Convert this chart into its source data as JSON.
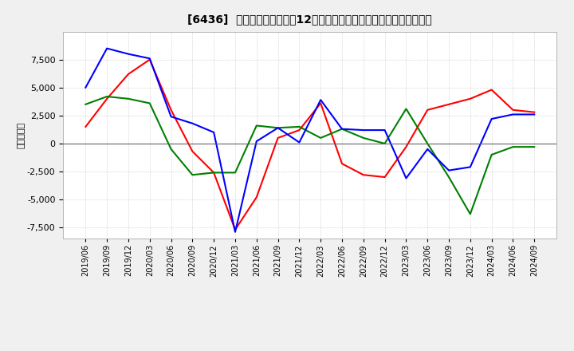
{
  "title": "[6436]  キャッシュフローの12か月移動合計の対前年同期増減額の推移",
  "ylabel": "（百万円）",
  "dates": [
    "2019/06",
    "2019/09",
    "2019/12",
    "2020/03",
    "2020/06",
    "2020/09",
    "2020/12",
    "2021/03",
    "2021/06",
    "2021/09",
    "2021/12",
    "2022/03",
    "2022/06",
    "2022/09",
    "2022/12",
    "2023/03",
    "2023/06",
    "2023/09",
    "2023/12",
    "2024/03",
    "2024/06",
    "2024/09"
  ],
  "eigyo_cf": [
    1500,
    4000,
    6200,
    7500,
    3000,
    -700,
    -2600,
    -7700,
    -4800,
    500,
    1200,
    3600,
    -1800,
    -2800,
    -3000,
    -300,
    3000,
    3500,
    4000,
    4800,
    3000,
    2800
  ],
  "toshi_cf": [
    3500,
    4200,
    4000,
    3600,
    -500,
    -2800,
    -2600,
    -2600,
    1600,
    1400,
    1500,
    500,
    1300,
    500,
    0,
    3100,
    0,
    -3000,
    -6300,
    -1000,
    -300,
    -300
  ],
  "free_cf": [
    5000,
    8500,
    8000,
    7600,
    2400,
    1800,
    1000,
    -7900,
    200,
    1400,
    100,
    3900,
    1300,
    1200,
    1200,
    -3100,
    -500,
    -2400,
    -2100,
    2200,
    2600,
    2600
  ],
  "eigyo_color": "#ff0000",
  "toshi_color": "#008000",
  "free_color": "#0000ff",
  "ylim": [
    -8500,
    10000
  ],
  "yticks": [
    -7500,
    -5000,
    -2500,
    0,
    2500,
    5000,
    7500
  ],
  "bg_color": "#f0f0f0",
  "plot_bg_color": "#ffffff"
}
